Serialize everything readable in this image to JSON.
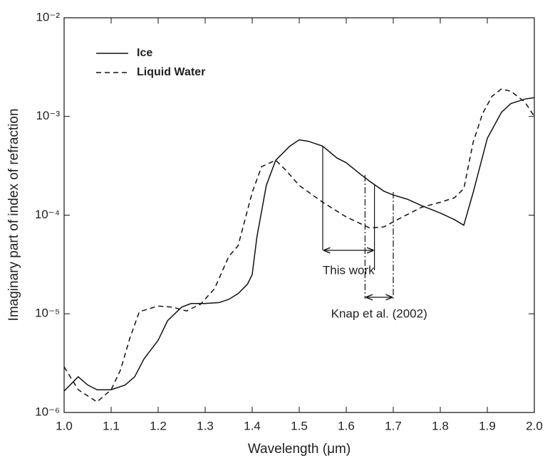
{
  "chart_data": {
    "type": "line",
    "x_label": "Wavelength (μm)",
    "y_label": "Imaginary part of index of refraction",
    "log_y": true,
    "xlim": [
      1.0,
      2.0
    ],
    "xticks": [
      {
        "value": 1.0,
        "label": "1.0"
      },
      1.1,
      1.2,
      1.3,
      1.4,
      1.5,
      1.6,
      1.7,
      1.8,
      1.9,
      {
        "value": 2.0,
        "label": "2.0"
      }
    ],
    "ylim": [
      1e-06,
      0.01
    ],
    "yticks": [
      {
        "value": 1e-06,
        "label": "10⁻⁶"
      },
      {
        "value": 1e-05,
        "label": "10⁻⁵"
      },
      {
        "value": 0.0001,
        "label": "10⁻⁴"
      },
      {
        "value": 0.001,
        "label": "10⁻³"
      },
      {
        "value": 0.01,
        "label": "10⁻²"
      }
    ],
    "legend": "upper left",
    "series": [
      {
        "name": "Ice",
        "color": "#111111",
        "style": "solid",
        "x": [
          1.0,
          1.03,
          1.05,
          1.07,
          1.1,
          1.13,
          1.15,
          1.17,
          1.2,
          1.22,
          1.25,
          1.27,
          1.3,
          1.33,
          1.35,
          1.37,
          1.39,
          1.4,
          1.41,
          1.43,
          1.45,
          1.48,
          1.5,
          1.52,
          1.55,
          1.58,
          1.6,
          1.63,
          1.65,
          1.68,
          1.7,
          1.73,
          1.76,
          1.8,
          1.83,
          1.85,
          1.87,
          1.9,
          1.93,
          1.95,
          1.98,
          2.0
        ],
        "values": [
          1.65e-06,
          2.3e-06,
          1.9e-06,
          1.7e-06,
          1.7e-06,
          1.9e-06,
          2.3e-06,
          3.5e-06,
          5.4e-06,
          8.5e-06,
          1.17e-05,
          1.27e-05,
          1.27e-05,
          1.3e-05,
          1.4e-05,
          1.6e-05,
          2e-05,
          2.5e-05,
          6e-05,
          0.0002,
          0.00036,
          0.0005,
          0.00058,
          0.00056,
          0.0005,
          0.00038,
          0.00034,
          0.00026,
          0.00022,
          0.000175,
          0.00016,
          0.000145,
          0.000125,
          0.000105,
          9e-05,
          7.9e-05,
          0.00017,
          0.0006,
          0.0011,
          0.00135,
          0.0015,
          0.00155
        ]
      },
      {
        "name": "Liquid Water",
        "color": "#111111",
        "style": "dashed",
        "x": [
          1.0,
          1.03,
          1.07,
          1.1,
          1.12,
          1.14,
          1.16,
          1.2,
          1.23,
          1.26,
          1.29,
          1.32,
          1.35,
          1.37,
          1.4,
          1.42,
          1.45,
          1.47,
          1.5,
          1.55,
          1.6,
          1.65,
          1.68,
          1.72,
          1.76,
          1.8,
          1.83,
          1.85,
          1.87,
          1.89,
          1.91,
          1.93,
          1.95,
          1.98,
          2.0
        ],
        "values": [
          2.9e-06,
          1.7e-06,
          1.28e-06,
          1.7e-06,
          2.7e-06,
          5.7e-06,
          1.05e-05,
          1.2e-05,
          1.17e-05,
          1.07e-05,
          1.25e-05,
          1.8e-05,
          3.8e-05,
          4.9e-05,
          0.00017,
          0.00031,
          0.00036,
          0.00029,
          0.0002,
          0.000135,
          9.6e-05,
          7.4e-05,
          7.6e-05,
          9.6e-05,
          0.00012,
          0.000135,
          0.00015,
          0.000185,
          0.00055,
          0.00107,
          0.0016,
          0.0019,
          0.0018,
          0.0014,
          0.001
        ]
      }
    ],
    "annotations": [
      {
        "text": "This work",
        "range": [
          1.55,
          1.66
        ]
      },
      {
        "text": "Knap et al. (2002)",
        "range": [
          1.64,
          1.7
        ]
      }
    ]
  }
}
